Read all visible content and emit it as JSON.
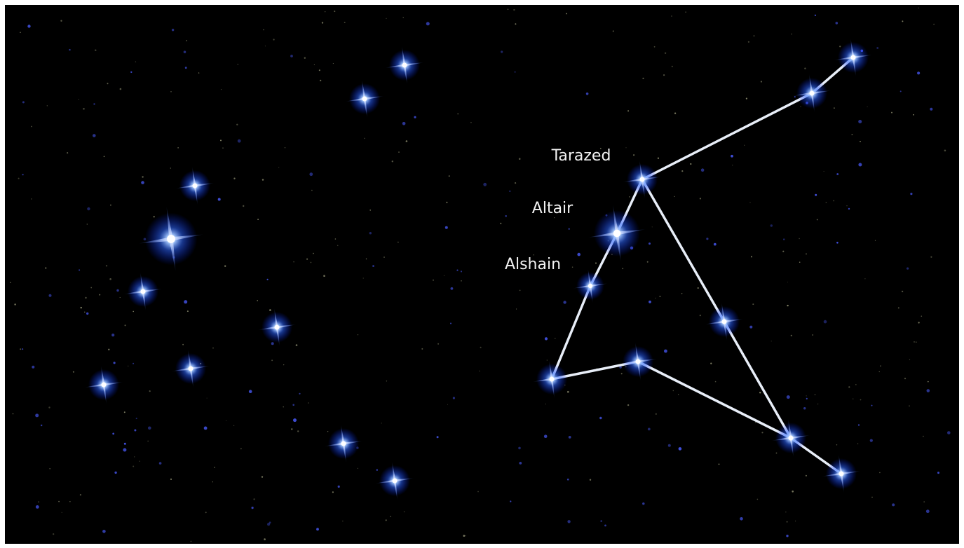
{
  "labels": {
    "tarazed": "Tarazed",
    "altair": "Altair",
    "alshain": "Alshain"
  }
}
